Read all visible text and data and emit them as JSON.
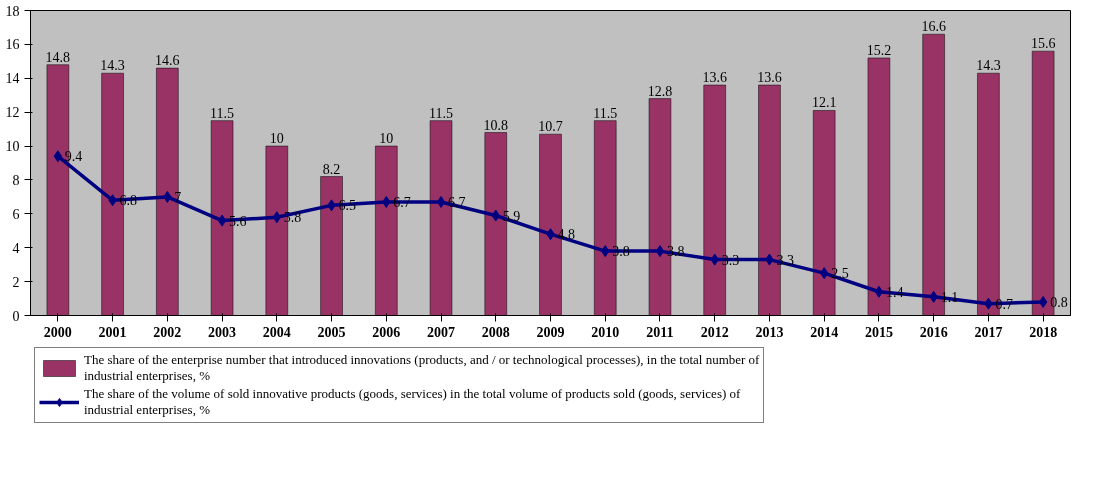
{
  "chart_data": {
    "type": "bar",
    "categories": [
      "2000",
      "2001",
      "2002",
      "2003",
      "2004",
      "2005",
      "2006",
      "2007",
      "2008",
      "2009",
      "2010",
      "2011",
      "2012",
      "2013",
      "2014",
      "2015",
      "2016",
      "2017",
      "2018"
    ],
    "series": [
      {
        "name": "The share of the enterprise number that introduced innovations (products, and / or technological processes), in the total number of industrial enterprises, %",
        "color": "#993366",
        "values": [
          14.8,
          14.3,
          14.6,
          11.5,
          10,
          8.2,
          10,
          11.5,
          10.8,
          10.7,
          11.5,
          12.8,
          13.6,
          13.6,
          12.1,
          15.2,
          16.6,
          14.3,
          15.6
        ]
      },
      {
        "name": "The share of the volume of sold innovative products (goods, services) in the total volume of products sold (goods, services) of industrial enterprises, %",
        "color": "#000080",
        "type": "line",
        "marker": "diamond",
        "values": [
          9.4,
          6.8,
          7,
          5.6,
          5.8,
          6.5,
          6.7,
          6.7,
          5.9,
          4.8,
          3.8,
          3.8,
          3.3,
          3.3,
          2.5,
          1.4,
          1.1,
          0.7,
          0.8
        ]
      }
    ],
    "ylim": [
      0,
      18
    ],
    "yticks": [
      0,
      2,
      4,
      6,
      8,
      10,
      12,
      14,
      16,
      18
    ],
    "grid": false,
    "legend": "bottom",
    "data_labels": true
  }
}
